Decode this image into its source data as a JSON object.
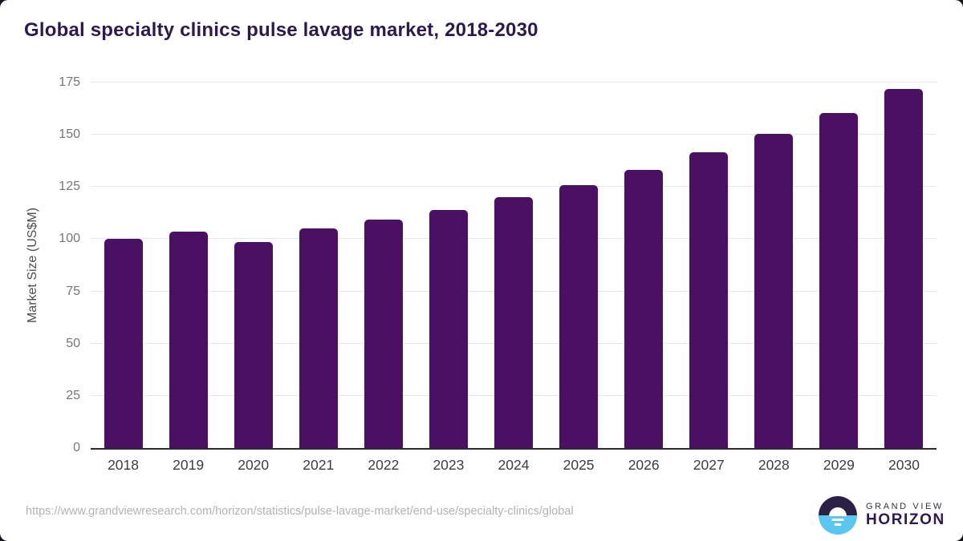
{
  "title": "Global specialty clinics pulse lavage market, 2018-2030",
  "chart_data": {
    "type": "bar",
    "categories": [
      "2018",
      "2019",
      "2020",
      "2021",
      "2022",
      "2023",
      "2024",
      "2025",
      "2026",
      "2027",
      "2028",
      "2029",
      "2030"
    ],
    "values": [
      100,
      103.5,
      98.5,
      105,
      109.5,
      114,
      120,
      126,
      133,
      141.5,
      150.5,
      160.5,
      172
    ],
    "title": "Global specialty clinics pulse lavage market, 2018-2030",
    "xlabel": "",
    "ylabel": "Market Size (US$M)",
    "ylim": [
      0,
      175
    ],
    "yticks": [
      0,
      25,
      50,
      75,
      100,
      125,
      150,
      175
    ],
    "grid": true,
    "legend": false,
    "bar_color": "#4a1063"
  },
  "footer": {
    "source_url": "https://www.grandviewresearch.com/horizon/statistics/pulse-lavage-market/end-use/specialty-clinics/global",
    "logo": {
      "line1": "GRAND VIEW",
      "line2": "HORIZON"
    }
  },
  "colors": {
    "title": "#2c1a4d",
    "bar": "#4a1063",
    "gridline": "#e8e8e8",
    "axis_line": "#2b2b2b",
    "y_tick": "#767676",
    "x_tick": "#3d3d3d",
    "url_text": "#b3b3b3",
    "logo_dark": "#2b2144",
    "logo_blue": "#5bc6f0"
  }
}
